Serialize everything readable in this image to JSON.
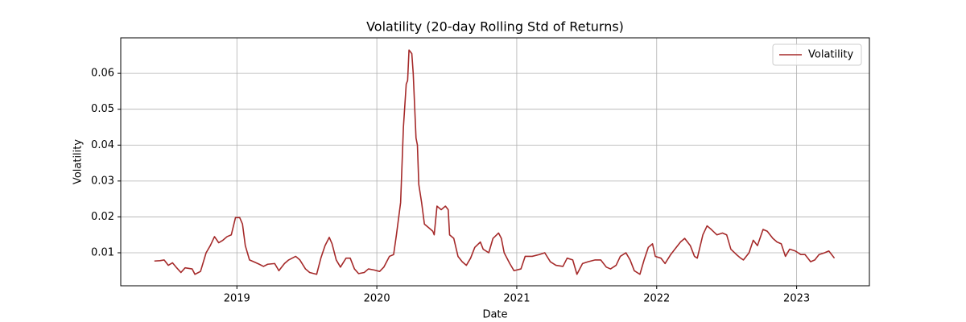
{
  "chart_data": {
    "type": "line",
    "title": "Volatility (20-day Rolling Std of Returns)",
    "x_label": "Date",
    "y_label": "Volatility",
    "x": [
      2018.41,
      2018.45,
      2018.48,
      2018.51,
      2018.54,
      2018.57,
      2018.6,
      2018.63,
      2018.68,
      2018.7,
      2018.74,
      2018.78,
      2018.81,
      2018.84,
      2018.87,
      2018.9,
      2018.93,
      2018.96,
      2018.99,
      2019.02,
      2019.04,
      2019.06,
      2019.09,
      2019.12,
      2019.16,
      2019.19,
      2019.22,
      2019.27,
      2019.3,
      2019.34,
      2019.37,
      2019.42,
      2019.45,
      2019.49,
      2019.52,
      2019.57,
      2019.6,
      2019.63,
      2019.66,
      2019.68,
      2019.71,
      2019.74,
      2019.78,
      2019.81,
      2019.84,
      2019.87,
      2019.91,
      2019.94,
      2019.98,
      2020.02,
      2020.05,
      2020.09,
      2020.12,
      2020.14,
      2020.17,
      2020.19,
      2020.21,
      2020.22,
      2020.23,
      2020.25,
      2020.26,
      2020.28,
      2020.29,
      2020.3,
      2020.32,
      2020.34,
      2020.37,
      2020.4,
      2020.41,
      2020.43,
      2020.46,
      2020.49,
      2020.51,
      2020.52,
      2020.55,
      2020.58,
      2020.61,
      2020.64,
      2020.67,
      2020.7,
      2020.74,
      2020.76,
      2020.8,
      2020.83,
      2020.87,
      2020.89,
      2020.91,
      2020.95,
      2020.98,
      2021.03,
      2021.06,
      2021.11,
      2021.16,
      2021.2,
      2021.24,
      2021.28,
      2021.33,
      2021.36,
      2021.4,
      2021.43,
      2021.47,
      2021.51,
      2021.56,
      2021.6,
      2021.64,
      2021.67,
      2021.71,
      2021.74,
      2021.78,
      2021.81,
      2021.84,
      2021.88,
      2021.91,
      2021.94,
      2021.97,
      2021.99,
      2022.03,
      2022.06,
      2022.1,
      2022.13,
      2022.17,
      2022.2,
      2022.24,
      2022.27,
      2022.29,
      2022.33,
      2022.36,
      2022.39,
      2022.43,
      2022.47,
      2022.5,
      2022.53,
      2022.57,
      2022.6,
      2022.62,
      2022.66,
      2022.69,
      2022.72,
      2022.76,
      2022.79,
      2022.83,
      2022.86,
      2022.89,
      2022.92,
      2022.95,
      2022.99,
      2023.03,
      2023.06,
      2023.1,
      2023.13,
      2023.16,
      2023.2,
      2023.23,
      2023.27
    ],
    "series": [
      {
        "name": "Volatility",
        "color": "#a52a2a",
        "values": [
          0.0077,
          0.0078,
          0.008,
          0.0065,
          0.0072,
          0.0058,
          0.0045,
          0.0058,
          0.0055,
          0.004,
          0.0048,
          0.01,
          0.012,
          0.0145,
          0.0128,
          0.0135,
          0.0145,
          0.015,
          0.0198,
          0.0198,
          0.018,
          0.012,
          0.008,
          0.0075,
          0.0068,
          0.0062,
          0.0068,
          0.007,
          0.005,
          0.007,
          0.008,
          0.009,
          0.008,
          0.0055,
          0.0045,
          0.004,
          0.0085,
          0.012,
          0.0143,
          0.0125,
          0.008,
          0.006,
          0.0085,
          0.0085,
          0.0055,
          0.0042,
          0.0045,
          0.0055,
          0.0052,
          0.0048,
          0.006,
          0.009,
          0.0095,
          0.015,
          0.024,
          0.045,
          0.057,
          0.058,
          0.0665,
          0.0655,
          0.06,
          0.042,
          0.04,
          0.029,
          0.024,
          0.018,
          0.017,
          0.016,
          0.015,
          0.023,
          0.022,
          0.023,
          0.022,
          0.015,
          0.014,
          0.009,
          0.0075,
          0.0065,
          0.0085,
          0.0115,
          0.013,
          0.011,
          0.01,
          0.014,
          0.0155,
          0.014,
          0.01,
          0.007,
          0.005,
          0.0055,
          0.009,
          0.009,
          0.0095,
          0.01,
          0.0075,
          0.0065,
          0.0062,
          0.0085,
          0.008,
          0.004,
          0.007,
          0.0075,
          0.008,
          0.008,
          0.006,
          0.0055,
          0.0065,
          0.009,
          0.01,
          0.008,
          0.005,
          0.004,
          0.008,
          0.0115,
          0.0125,
          0.009,
          0.0085,
          0.007,
          0.0095,
          0.011,
          0.013,
          0.014,
          0.012,
          0.009,
          0.0085,
          0.015,
          0.0175,
          0.0165,
          0.015,
          0.0155,
          0.015,
          0.011,
          0.0095,
          0.0085,
          0.008,
          0.01,
          0.0135,
          0.012,
          0.0165,
          0.016,
          0.014,
          0.013,
          0.0125,
          0.009,
          0.011,
          0.0105,
          0.0095,
          0.0095,
          0.0075,
          0.008,
          0.0095,
          0.01,
          0.0105,
          0.0085
        ]
      }
    ],
    "xlim": [
      2018.17,
      2023.52
    ],
    "xticks": [
      2019,
      2020,
      2021,
      2022,
      2023
    ],
    "ylim": [
      0.0008,
      0.0699
    ],
    "yticks": [
      0.01,
      0.02,
      0.03,
      0.04,
      0.05,
      0.06
    ],
    "grid": true,
    "legend": "upper right"
  }
}
